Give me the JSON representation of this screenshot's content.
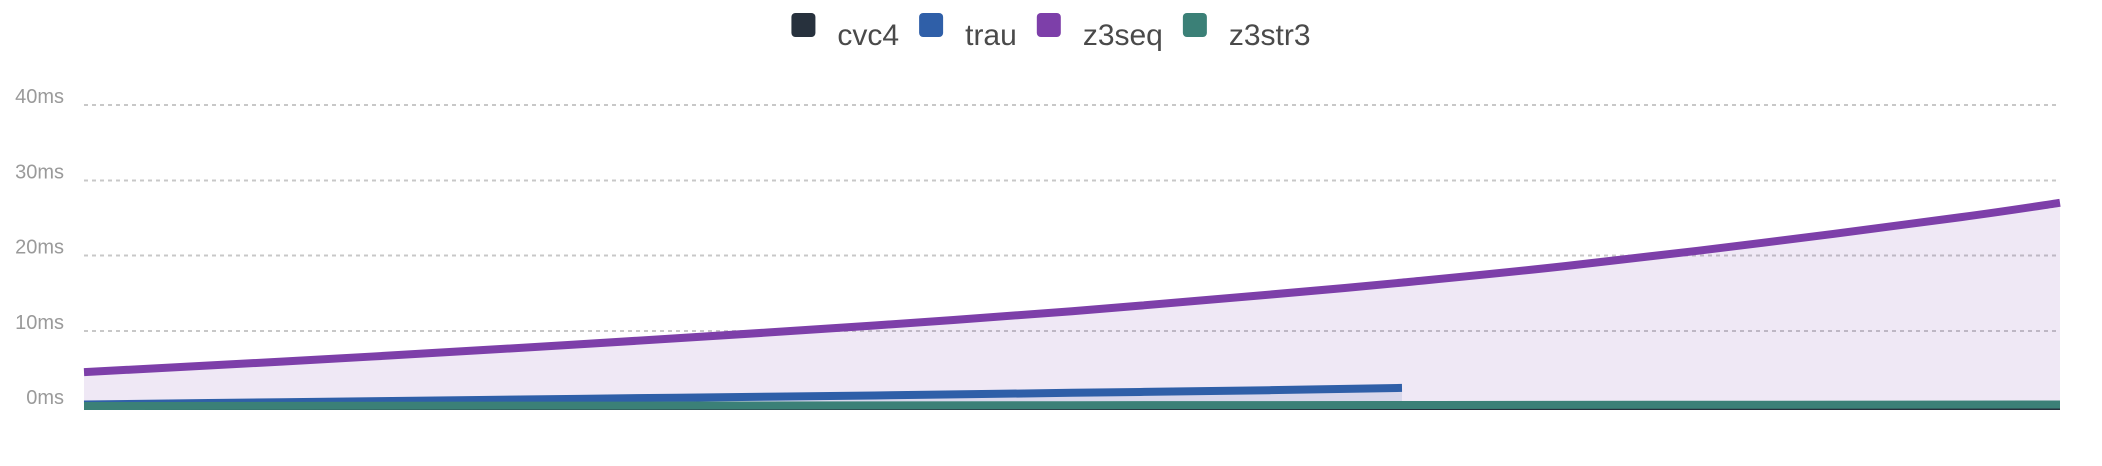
{
  "chart_data": {
    "type": "area",
    "title": "",
    "xlabel": "",
    "ylabel": "",
    "ylim": [
      0,
      40
    ],
    "y_ticks": [
      "0ms",
      "10ms",
      "20ms",
      "30ms",
      "40ms"
    ],
    "y_tick_values": [
      0,
      10,
      20,
      30,
      40
    ],
    "grid": true,
    "legend_position": "top-center",
    "x_range": [
      0,
      1
    ],
    "series": [
      {
        "name": "cvc4",
        "color": "#27313d",
        "points": [
          [
            0,
            0
          ],
          [
            1,
            0
          ]
        ]
      },
      {
        "name": "trau",
        "color": "#2f5fa8",
        "points": [
          [
            0,
            0.2
          ],
          [
            0.1,
            0.5
          ],
          [
            0.2,
            0.8
          ],
          [
            0.3,
            1.1
          ],
          [
            0.4,
            1.4
          ],
          [
            0.5,
            1.75
          ],
          [
            0.6,
            2.1
          ],
          [
            0.667,
            2.4
          ]
        ]
      },
      {
        "name": "z3seq",
        "color": "#7d3fa9",
        "points": [
          [
            0,
            4.5
          ],
          [
            0.1,
            5.9
          ],
          [
            0.2,
            7.4
          ],
          [
            0.3,
            9.0
          ],
          [
            0.4,
            10.7
          ],
          [
            0.5,
            12.6
          ],
          [
            0.6,
            14.8
          ],
          [
            0.667,
            16.4
          ],
          [
            0.75,
            18.6
          ],
          [
            0.85,
            21.7
          ],
          [
            0.95,
            25.1
          ],
          [
            1,
            27.0
          ]
        ]
      },
      {
        "name": "z3str3",
        "color": "#3b8077",
        "points": [
          [
            0,
            0
          ],
          [
            0.5,
            0.1
          ],
          [
            1,
            0.2
          ]
        ]
      }
    ]
  }
}
